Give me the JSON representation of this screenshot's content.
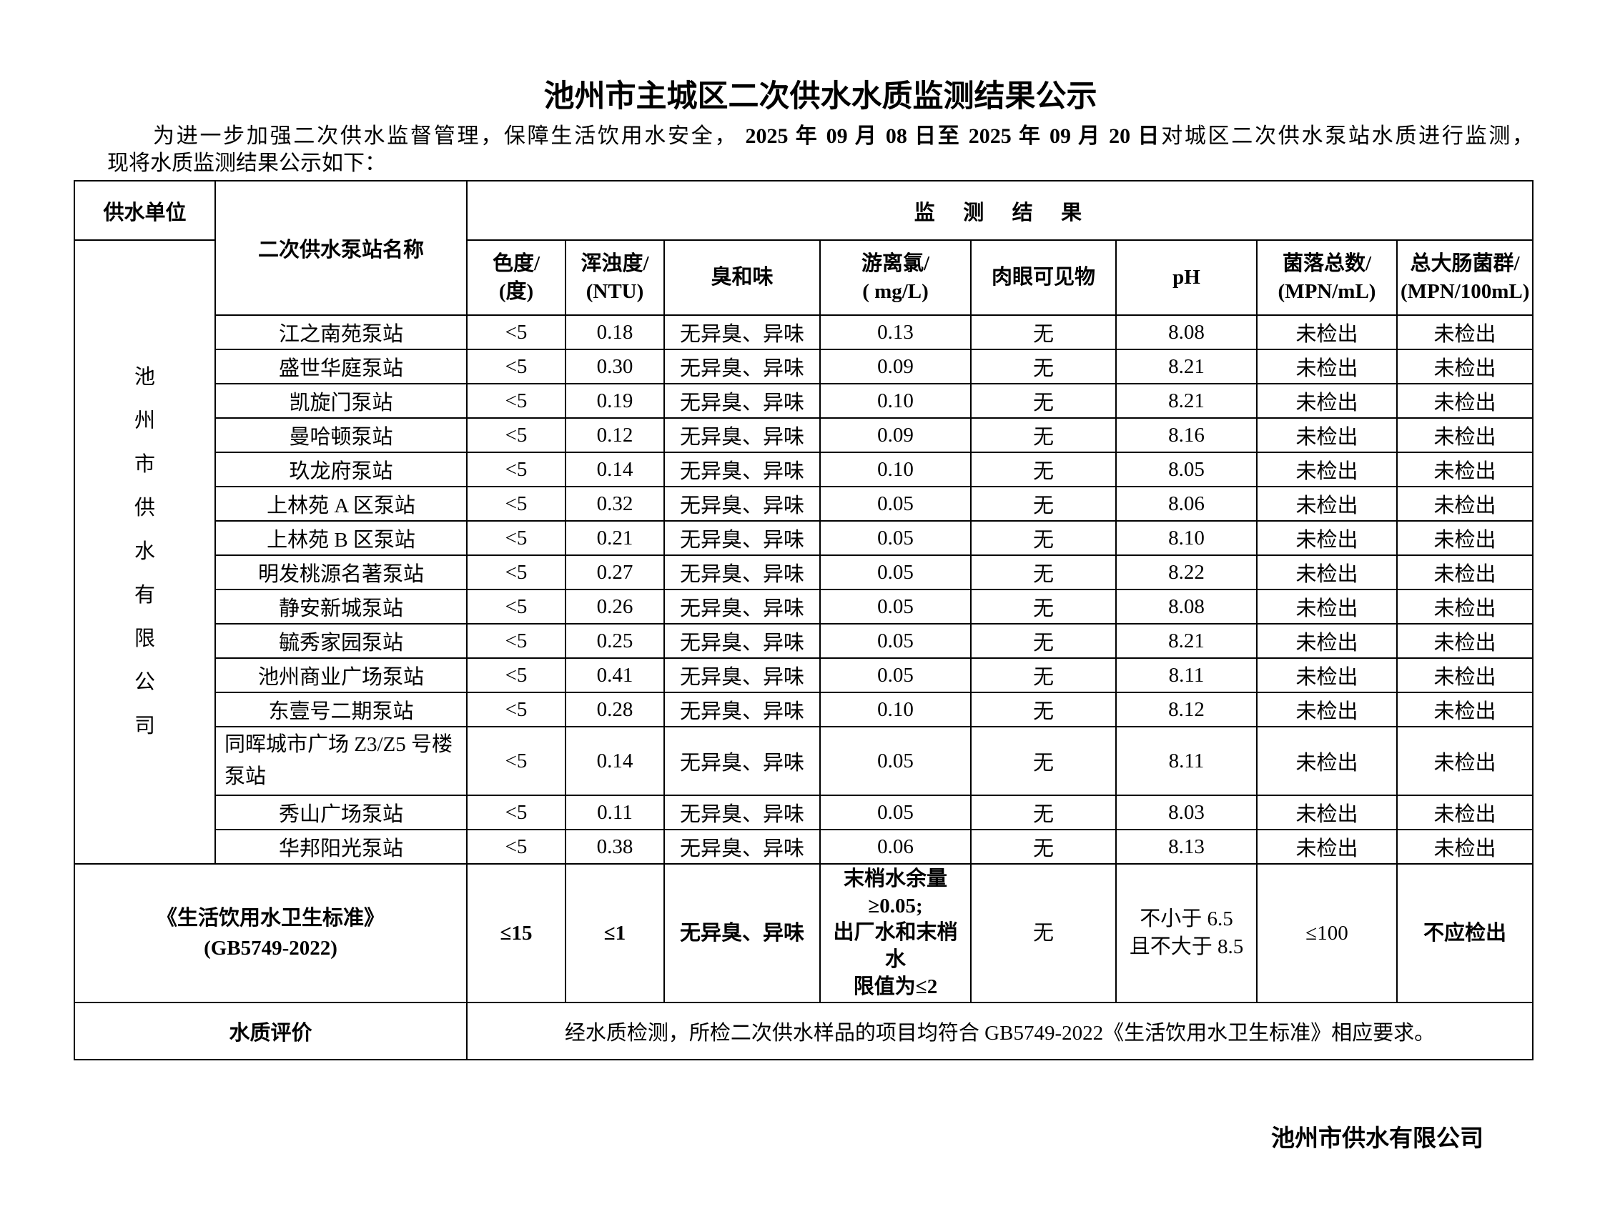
{
  "title": "池州市主城区二次供水水质监测结果公示",
  "intro": {
    "line1_pre": "为进一步加强二次供水监督管理，保障生活饮用水安全，",
    "line1_dates": " 2025 年 09 月 08 日至 2025 年 09 月 20 日",
    "line1_post": "对城区二次供水泵站水质进行监测，",
    "line2": "现将水质监测结果公示如下："
  },
  "table": {
    "header": {
      "supply_unit": "供水单位",
      "station_name": "二次供水泵站名称",
      "results": "监　测　结　果",
      "sub": [
        "色度/\n(度)",
        "浑浊度/\n(NTU)",
        "臭和味",
        "游离氯/\n( mg/L)",
        "肉眼可见物",
        "pH",
        "菌落总数/\n(MPN/mL)",
        "总大肠菌群/\n(MPN/100mL)"
      ]
    },
    "company_vertical": "池\n州\n市\n供\n水\n有\n限\n公\n司",
    "rows": [
      {
        "name": "江之南苑泵站",
        "values": [
          "<5",
          "0.18",
          "无异臭、异味",
          "0.13",
          "无",
          "8.08",
          "未检出",
          "未检出"
        ]
      },
      {
        "name": "盛世华庭泵站",
        "values": [
          "<5",
          "0.30",
          "无异臭、异味",
          "0.09",
          "无",
          "8.21",
          "未检出",
          "未检出"
        ]
      },
      {
        "name": "凯旋门泵站",
        "values": [
          "<5",
          "0.19",
          "无异臭、异味",
          "0.10",
          "无",
          "8.21",
          "未检出",
          "未检出"
        ]
      },
      {
        "name": "曼哈顿泵站",
        "values": [
          "<5",
          "0.12",
          "无异臭、异味",
          "0.09",
          "无",
          "8.16",
          "未检出",
          "未检出"
        ]
      },
      {
        "name": "玖龙府泵站",
        "values": [
          "<5",
          "0.14",
          "无异臭、异味",
          "0.10",
          "无",
          "8.05",
          "未检出",
          "未检出"
        ]
      },
      {
        "name": "上林苑 A 区泵站",
        "values": [
          "<5",
          "0.32",
          "无异臭、异味",
          "0.05",
          "无",
          "8.06",
          "未检出",
          "未检出"
        ]
      },
      {
        "name": "上林苑 B 区泵站",
        "values": [
          "<5",
          "0.21",
          "无异臭、异味",
          "0.05",
          "无",
          "8.10",
          "未检出",
          "未检出"
        ]
      },
      {
        "name": "明发桃源名著泵站",
        "values": [
          "<5",
          "0.27",
          "无异臭、异味",
          "0.05",
          "无",
          "8.22",
          "未检出",
          "未检出"
        ]
      },
      {
        "name": "静安新城泵站",
        "values": [
          "<5",
          "0.26",
          "无异臭、异味",
          "0.05",
          "无",
          "8.08",
          "未检出",
          "未检出"
        ]
      },
      {
        "name": "毓秀家园泵站",
        "values": [
          "<5",
          "0.25",
          "无异臭、异味",
          "0.05",
          "无",
          "8.21",
          "未检出",
          "未检出"
        ]
      },
      {
        "name": "池州商业广场泵站",
        "values": [
          "<5",
          "0.41",
          "无异臭、异味",
          "0.05",
          "无",
          "8.11",
          "未检出",
          "未检出"
        ]
      },
      {
        "name": "东壹号二期泵站",
        "values": [
          "<5",
          "0.28",
          "无异臭、异味",
          "0.10",
          "无",
          "8.12",
          "未检出",
          "未检出"
        ]
      },
      {
        "name": "同晖城市广场 Z3/Z5 号楼泵站",
        "values": [
          "<5",
          "0.14",
          "无异臭、异味",
          "0.05",
          "无",
          "8.11",
          "未检出",
          "未检出"
        ]
      },
      {
        "name": "秀山广场泵站",
        "values": [
          "<5",
          "0.11",
          "无异臭、异味",
          "0.05",
          "无",
          "8.03",
          "未检出",
          "未检出"
        ]
      },
      {
        "name": "华邦阳光泵站",
        "values": [
          "<5",
          "0.38",
          "无异臭、异味",
          "0.06",
          "无",
          "8.13",
          "未检出",
          "未检出"
        ]
      }
    ],
    "standard": {
      "label": "《生活饮用水卫生标准》\n(GB5749-2022)",
      "values": [
        "≤15",
        "≤1",
        "无异臭、异味",
        "末梢水余量≥0.05;\n出厂水和末梢水\n限值为≤2",
        "无",
        "不小于 6.5\n且不大于 8.5",
        "≤100",
        "不应检出"
      ]
    },
    "evaluation": {
      "label": "水质评价",
      "text": "经水质检测，所检二次供水样品的项目均符合 GB5749-2022《生活饮用水卫生标准》相应要求。"
    }
  },
  "footer": "池州市供水有限公司"
}
